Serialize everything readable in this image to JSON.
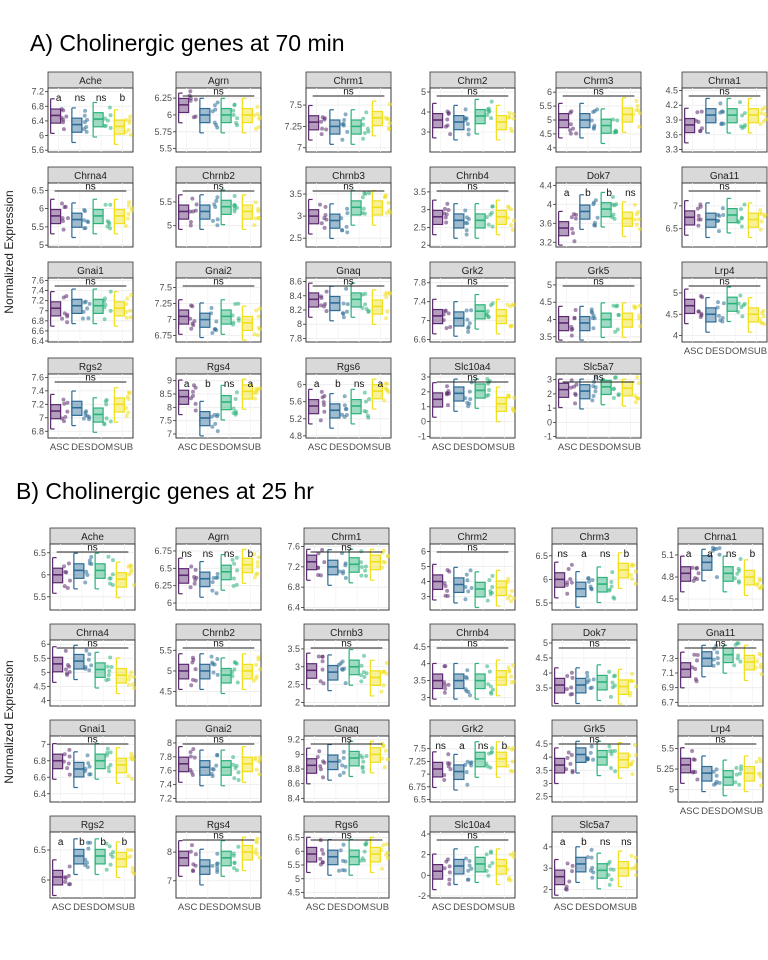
{
  "section_titles": [
    "A) Cholinergic genes at 70 min",
    "B) Cholinergic genes at 25 hr"
  ],
  "ylabel": "Normalized Expression",
  "groups": [
    "ASC",
    "DES",
    "DOM",
    "SUB"
  ],
  "group_colors": [
    "#5b2a6e",
    "#2c6b96",
    "#2bb27a",
    "#f0df1a"
  ],
  "chart_data": [
    {
      "type": "boxplot-facets",
      "title": "A) Cholinergic genes at 70 min",
      "ylabel": "Normalized Expression",
      "categories": [
        "ASC",
        "DES",
        "DOM",
        "SUB"
      ],
      "panels": [
        {
          "gene": "Ache",
          "yticks": [
            5.6,
            6.0,
            6.4,
            6.8,
            7.2
          ],
          "ylim": [
            5.55,
            7.3
          ],
          "annot": [
            "a",
            "ns",
            "ns",
            "b"
          ],
          "medians": [
            6.55,
            6.3,
            6.45,
            6.25
          ]
        },
        {
          "gene": "Agrn",
          "yticks": [
            5.5,
            5.75,
            6.0,
            6.25
          ],
          "ylim": [
            5.45,
            6.4
          ],
          "annot": [
            "ns"
          ],
          "medians": [
            6.15,
            6.0,
            6.0,
            6.0
          ]
        },
        {
          "gene": "Chrm1",
          "yticks": [
            7.0,
            7.25,
            7.5
          ],
          "ylim": [
            6.95,
            7.7
          ],
          "annot": [
            "ns"
          ],
          "medians": [
            7.3,
            7.25,
            7.25,
            7.35
          ]
        },
        {
          "gene": "Chrm2",
          "yticks": [
            3,
            4,
            5
          ],
          "ylim": [
            2.0,
            5.2
          ],
          "annot": [
            "ns"
          ],
          "medians": [
            3.6,
            3.5,
            3.8,
            3.5
          ]
        },
        {
          "gene": "Chrm3",
          "yticks": [
            4.0,
            4.5,
            5.0,
            5.5,
            6.0
          ],
          "ylim": [
            3.85,
            6.15
          ],
          "annot": [
            "ns"
          ],
          "medians": [
            5.0,
            5.0,
            4.8,
            5.2
          ]
        },
        {
          "gene": "Chrna1",
          "yticks": [
            3.3,
            3.6,
            3.9,
            4.2,
            4.5
          ],
          "ylim": [
            3.25,
            4.55
          ],
          "annot": [
            "ns"
          ],
          "medians": [
            3.8,
            4.0,
            4.0,
            4.0
          ]
        },
        {
          "gene": "Chrna4",
          "yticks": [
            5.0,
            5.5,
            6.0,
            6.5
          ],
          "ylim": [
            4.95,
            6.7
          ],
          "annot": [
            "ns"
          ],
          "medians": [
            5.8,
            5.7,
            5.8,
            5.8
          ]
        },
        {
          "gene": "Chrnb2",
          "yticks": [
            5.0,
            5.5
          ],
          "ylim": [
            4.55,
            5.9
          ],
          "annot": [
            "ns"
          ],
          "medians": [
            5.3,
            5.3,
            5.4,
            5.3
          ]
        },
        {
          "gene": "Chrnb3",
          "yticks": [
            2.5,
            3.0,
            3.5
          ],
          "ylim": [
            2.3,
            3.75
          ],
          "annot": [
            "ns"
          ],
          "medians": [
            3.0,
            2.9,
            3.2,
            3.2
          ]
        },
        {
          "gene": "Chrnb4",
          "yticks": [
            2.0,
            2.5,
            3.0,
            3.5
          ],
          "ylim": [
            1.95,
            3.75
          ],
          "annot": [
            "ns"
          ],
          "medians": [
            2.8,
            2.7,
            2.7,
            2.8
          ]
        },
        {
          "gene": "Dok7",
          "yticks": [
            3.2,
            3.6,
            4.0,
            4.4
          ],
          "ylim": [
            3.1,
            4.45
          ],
          "annot": [
            "a",
            "b",
            "b",
            "ns"
          ],
          "medians": [
            3.5,
            3.85,
            3.9,
            3.7
          ]
        },
        {
          "gene": "Gna11",
          "yticks": [
            6.5,
            7.0
          ],
          "ylim": [
            6.1,
            7.5
          ],
          "annot": [
            "ns"
          ],
          "medians": [
            6.75,
            6.7,
            6.8,
            6.7
          ]
        },
        {
          "gene": "Gnai1",
          "yticks": [
            6.4,
            6.6,
            6.8,
            7.0,
            7.2,
            7.4,
            7.6
          ],
          "ylim": [
            6.38,
            7.65
          ],
          "annot": [
            "ns"
          ],
          "medians": [
            7.05,
            7.1,
            7.1,
            7.05
          ]
        },
        {
          "gene": "Gnai2",
          "yticks": [
            6.75,
            7.0,
            7.25,
            7.5
          ],
          "ylim": [
            6.65,
            7.65
          ],
          "annot": [
            "ns"
          ],
          "medians": [
            7.05,
            7.0,
            7.05,
            6.95
          ]
        },
        {
          "gene": "Gnaq",
          "yticks": [
            7.8,
            8.0,
            8.2,
            8.4,
            8.6
          ],
          "ylim": [
            7.75,
            8.65
          ],
          "annot": [
            "ns"
          ],
          "medians": [
            8.35,
            8.3,
            8.35,
            8.25
          ]
        },
        {
          "gene": "Grk2",
          "yticks": [
            6.6,
            7.0,
            7.4,
            7.8
          ],
          "ylim": [
            6.55,
            7.9
          ],
          "annot": [
            "ns"
          ],
          "medians": [
            7.1,
            7.05,
            7.2,
            7.1
          ]
        },
        {
          "gene": "Grk5",
          "yticks": [
            3.5,
            4.0,
            4.5,
            5.0
          ],
          "ylim": [
            3.35,
            5.2
          ],
          "annot": [
            "ns"
          ],
          "medians": [
            3.9,
            3.9,
            4.0,
            4.0
          ]
        },
        {
          "gene": "Lrp4",
          "yticks": [
            4.0,
            4.5,
            5.0
          ],
          "ylim": [
            3.85,
            5.35
          ],
          "annot": [
            "ns"
          ],
          "medians": [
            4.7,
            4.5,
            4.75,
            4.5
          ]
        },
        {
          "gene": "Rgs2",
          "yticks": [
            6.8,
            7.0,
            7.2,
            7.4,
            7.6
          ],
          "ylim": [
            6.7,
            7.65
          ],
          "annot": [
            "ns"
          ],
          "medians": [
            7.1,
            7.15,
            7.05,
            7.2
          ]
        },
        {
          "gene": "Rgs4",
          "yticks": [
            7.0,
            7.5,
            8.0,
            8.5,
            9.0
          ],
          "ylim": [
            6.85,
            9.25
          ],
          "annot": [
            "a",
            "b",
            "ns",
            "a"
          ],
          "medians": [
            8.4,
            7.6,
            8.2,
            8.6
          ]
        },
        {
          "gene": "Rgs6",
          "yticks": [
            4.8,
            5.2,
            5.6,
            6.0
          ],
          "ylim": [
            4.75,
            6.25
          ],
          "annot": [
            "a",
            "b",
            "ns",
            "a"
          ],
          "medians": [
            5.5,
            5.4,
            5.5,
            5.85
          ]
        },
        {
          "gene": "Slc10a4",
          "yticks": [
            -1,
            0,
            1,
            2,
            3
          ],
          "ylim": [
            -1.1,
            3.2
          ],
          "annot": [
            "ns"
          ],
          "medians": [
            1.5,
            1.9,
            2.1,
            1.2
          ]
        },
        {
          "gene": "Slc5a7",
          "yticks": [
            -1,
            0,
            1,
            2,
            3
          ],
          "ylim": [
            -1.1,
            3.4
          ],
          "annot": [
            "ns"
          ],
          "medians": [
            2.3,
            2.2,
            2.5,
            2.4
          ]
        }
      ]
    },
    {
      "type": "boxplot-facets",
      "title": "B) Cholinergic genes at 25 hr",
      "ylabel": "Normalized Expression",
      "categories": [
        "ASC",
        "DES",
        "DOM",
        "SUB"
      ],
      "panels": [
        {
          "gene": "Ache",
          "yticks": [
            5.5,
            6.0,
            6.5
          ],
          "ylim": [
            5.2,
            6.7
          ],
          "annot": [
            "ns"
          ],
          "medians": [
            6.0,
            6.1,
            6.1,
            5.9
          ]
        },
        {
          "gene": "Agrn",
          "yticks": [
            6.0,
            6.25,
            6.5,
            6.75
          ],
          "ylim": [
            5.9,
            6.85
          ],
          "annot": [
            "ns",
            "ns",
            "ns",
            "b"
          ],
          "medians": [
            6.4,
            6.35,
            6.45,
            6.55
          ]
        },
        {
          "gene": "Chrm1",
          "yticks": [
            6.4,
            6.8,
            7.2,
            7.6
          ],
          "ylim": [
            6.35,
            7.65
          ],
          "annot": [
            "ns"
          ],
          "medians": [
            7.3,
            7.2,
            7.25,
            7.3
          ]
        },
        {
          "gene": "Chrm2",
          "yticks": [
            3,
            4,
            5,
            6
          ],
          "ylim": [
            2.1,
            6.5
          ],
          "annot": [
            "ns"
          ],
          "medians": [
            4.0,
            3.8,
            3.5,
            3.6
          ]
        },
        {
          "gene": "Chrm3",
          "yticks": [
            5.5,
            6.0,
            6.5
          ],
          "ylim": [
            5.35,
            6.75
          ],
          "annot": [
            "ns",
            "a",
            "ns",
            "b"
          ],
          "medians": [
            6.0,
            5.8,
            5.9,
            6.2
          ]
        },
        {
          "gene": "Chrna1",
          "yticks": [
            4.5,
            4.8,
            5.1
          ],
          "ylim": [
            4.35,
            5.25
          ],
          "annot": [
            "a",
            "a",
            "ns",
            "b"
          ],
          "medians": [
            4.85,
            5.0,
            4.85,
            4.8
          ]
        },
        {
          "gene": "Chrna4",
          "yticks": [
            4.0,
            4.5,
            5.0,
            5.5,
            6.0
          ],
          "ylim": [
            3.8,
            6.15
          ],
          "annot": [
            "ns"
          ],
          "medians": [
            5.3,
            5.4,
            5.1,
            4.9
          ]
        },
        {
          "gene": "Chrnb2",
          "yticks": [
            4.5,
            5.0,
            5.5
          ],
          "ylim": [
            4.15,
            5.75
          ],
          "annot": [
            "ns"
          ],
          "medians": [
            5.0,
            5.0,
            4.9,
            5.0
          ]
        },
        {
          "gene": "Chrnb3",
          "yticks": [
            2.0,
            2.5,
            3.0,
            3.5
          ],
          "ylim": [
            1.9,
            3.75
          ],
          "annot": [
            "ns"
          ],
          "medians": [
            2.9,
            2.85,
            3.0,
            2.7
          ]
        },
        {
          "gene": "Chrnb4",
          "yticks": [
            3.0,
            3.5,
            4.0,
            4.5
          ],
          "ylim": [
            2.75,
            4.7
          ],
          "annot": [
            "ns"
          ],
          "medians": [
            3.5,
            3.5,
            3.5,
            3.6
          ]
        },
        {
          "gene": "Dok7",
          "yticks": [
            3.5,
            4.0,
            4.5,
            5.0
          ],
          "ylim": [
            2.9,
            5.1
          ],
          "annot": [
            "ns"
          ],
          "medians": [
            3.6,
            3.6,
            3.7,
            3.55
          ]
        },
        {
          "gene": "Gna11",
          "yticks": [
            6.7,
            6.9,
            7.1,
            7.3
          ],
          "ylim": [
            6.65,
            7.55
          ],
          "annot": [
            "ns"
          ],
          "medians": [
            7.15,
            7.3,
            7.35,
            7.25
          ]
        },
        {
          "gene": "Gnai1",
          "yticks": [
            6.4,
            6.6,
            6.8,
            7.0
          ],
          "ylim": [
            6.3,
            7.1
          ],
          "annot": [
            "ns"
          ],
          "medians": [
            6.8,
            6.7,
            6.8,
            6.75
          ]
        },
        {
          "gene": "Gnai2",
          "yticks": [
            7.2,
            7.4,
            7.6,
            7.8,
            8.0
          ],
          "ylim": [
            7.15,
            8.1
          ],
          "annot": [
            "ns"
          ],
          "medians": [
            7.7,
            7.65,
            7.65,
            7.7
          ]
        },
        {
          "gene": "Gnaq",
          "yticks": [
            8.4,
            8.6,
            8.8,
            9.0,
            9.2
          ],
          "ylim": [
            8.35,
            9.25
          ],
          "annot": [
            "ns"
          ],
          "medians": [
            8.85,
            8.9,
            8.95,
            9.0
          ]
        },
        {
          "gene": "Grk2",
          "yticks": [
            6.5,
            6.75,
            7.0,
            7.25,
            7.5
          ],
          "ylim": [
            6.45,
            7.75
          ],
          "annot": [
            "ns",
            "a",
            "ns",
            "b"
          ],
          "medians": [
            7.1,
            7.05,
            7.3,
            7.3
          ]
        },
        {
          "gene": "Grk5",
          "yticks": [
            2.5,
            3.0,
            3.5,
            4.0,
            4.5
          ],
          "ylim": [
            2.3,
            4.8
          ],
          "annot": [
            "ns"
          ],
          "medians": [
            3.7,
            4.1,
            4.0,
            3.9
          ]
        },
        {
          "gene": "Lrp4",
          "yticks": [
            5.0,
            5.25,
            5.5
          ],
          "ylim": [
            4.85,
            5.65
          ],
          "annot": [
            "ns"
          ],
          "medians": [
            5.3,
            5.2,
            5.15,
            5.2
          ]
        },
        {
          "gene": "Rgs2",
          "yticks": [
            6.0,
            6.5
          ],
          "ylim": [
            5.7,
            6.8
          ],
          "annot": [
            "a",
            "b",
            "b",
            "b"
          ],
          "medians": [
            6.05,
            6.4,
            6.4,
            6.35
          ]
        },
        {
          "gene": "Rgs4",
          "yticks": [
            7,
            8
          ],
          "ylim": [
            6.4,
            8.7
          ],
          "annot": [
            "ns"
          ],
          "medians": [
            7.8,
            7.5,
            7.8,
            8.0
          ]
        },
        {
          "gene": "Rgs6",
          "yticks": [
            4.5,
            5.0,
            5.5,
            6.0,
            6.5
          ],
          "ylim": [
            4.3,
            6.7
          ],
          "annot": [
            "ns"
          ],
          "medians": [
            5.9,
            5.8,
            5.8,
            5.9
          ]
        },
        {
          "gene": "Slc10a4",
          "yticks": [
            -2,
            0,
            2,
            4
          ],
          "ylim": [
            -2.2,
            4.2
          ],
          "annot": [
            "ns"
          ],
          "medians": [
            0.4,
            0.9,
            1.1,
            0.9
          ]
        },
        {
          "gene": "Slc5a7",
          "yticks": [
            2,
            3,
            4
          ],
          "ylim": [
            1.6,
            4.7
          ],
          "annot": [
            "a",
            "b",
            "ns",
            "ns"
          ],
          "medians": [
            2.6,
            3.2,
            2.9,
            3.0
          ]
        }
      ]
    }
  ]
}
